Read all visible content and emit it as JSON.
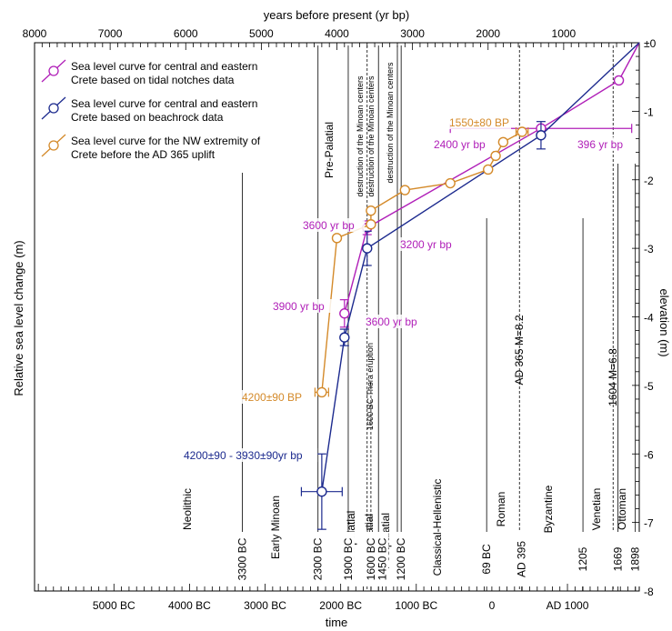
{
  "chart_data": {
    "type": "line",
    "top_axis": {
      "label": "years before present (yr bp)",
      "ticks": [
        "8000",
        "7000",
        "6000",
        "5000",
        "4000",
        "3000",
        "2000",
        "1000"
      ],
      "range": [
        8000,
        0
      ]
    },
    "bottom_axis": {
      "label": "time",
      "ticks": [
        "5000 BC",
        "4000 BC",
        "3000 BC",
        "2000 BC",
        "1000 BC",
        "0",
        "AD 1000"
      ]
    },
    "left_axis_label": "Relative sea level change (m)",
    "right_axis": {
      "label": "elevation (m)",
      "ticks": [
        "±0",
        "-1",
        "-2",
        "-3",
        "-4",
        "-5",
        "-6",
        "-7",
        "-8"
      ],
      "range": [
        0,
        -8
      ]
    },
    "legend": {
      "placement": "top-left",
      "entries": [
        {
          "line1": "Sea level curve for central and eastern",
          "line2": "Crete based on tidal notches data",
          "color": "#b01fb8"
        },
        {
          "line1": "Sea level curve for central and eastern",
          "line2": "Crete based on beachrock data",
          "color": "#1c2a8e"
        },
        {
          "line1": "Sea level curve for the NW extremity of",
          "line2": "Crete before the AD 365 uplift",
          "color": "#d48a2a"
        }
      ]
    },
    "series": [
      {
        "key": "notches",
        "color": "#b01fb8",
        "points": [
          {
            "t": 3900,
            "y": -3.95,
            "yerr": 0.2
          },
          {
            "t": 3600,
            "y": -2.7,
            "yerr": 0.1
          },
          {
            "t": 1300,
            "y": -1.25,
            "xerr": 1200
          },
          {
            "t": 270,
            "y": -0.55
          },
          {
            "t": 0,
            "y": 0
          }
        ]
      },
      {
        "key": "beachrock",
        "color": "#1c2a8e",
        "points": [
          {
            "t": 4200,
            "y": -6.55,
            "yerr": 0.55,
            "xerr": 270
          },
          {
            "t": 3900,
            "y": -4.3,
            "yerr": 0.12
          },
          {
            "t": 3600,
            "y": -3.0,
            "yerr": 0.25
          },
          {
            "t": 1300,
            "y": -1.35,
            "yerr": 0.2
          },
          {
            "t": 0,
            "y": 0
          }
        ]
      },
      {
        "key": "nw_crete",
        "color": "#d48a2a",
        "points": [
          {
            "t": 4200,
            "y": -5.1,
            "xerr": 90
          },
          {
            "t": 4000,
            "y": -2.85
          },
          {
            "t": 3550,
            "y": -2.65
          },
          {
            "t": 3550,
            "y": -2.45
          },
          {
            "t": 3100,
            "y": -2.15
          },
          {
            "t": 2500,
            "y": -2.05
          },
          {
            "t": 2000,
            "y": -1.85
          },
          {
            "t": 1900,
            "y": -1.65
          },
          {
            "t": 1800,
            "y": -1.45
          },
          {
            "t": 1550,
            "y": -1.3,
            "xerr": 80
          }
        ]
      }
    ],
    "annotations": [
      {
        "text": "1550±80 BP",
        "color": "#d48a2a"
      },
      {
        "text": "2400 yr bp",
        "color": "#b01fb8"
      },
      {
        "text": "396 yr bp",
        "color": "#b01fb8"
      },
      {
        "text": "3600 yr bp",
        "color": "#b01fb8"
      },
      {
        "text": "3200 yr bp",
        "color": "#b01fb8"
      },
      {
        "text": "3900 yr bp",
        "color": "#b01fb8"
      },
      {
        "text": "3600 yr bp",
        "color": "#b01fb8"
      },
      {
        "text": "4200±90 BP",
        "color": "#d48a2a"
      },
      {
        "text": "4200±90 - 3930±90yr bp",
        "color": "#1c2a8e"
      }
    ],
    "vertical_events": [
      {
        "t": 3600,
        "text": "destruction of the Minoan centers",
        "style": "dashed"
      },
      {
        "t": 3450,
        "text": "destruction of the Minoan centers",
        "style": "solid"
      },
      {
        "t": 3200,
        "text": "destruction of the Minoan centers",
        "style": "solid"
      },
      {
        "t": 3550,
        "text": "1600 BC Thera eruption",
        "style": "dashed"
      },
      {
        "t": 1585,
        "text": "AD 365 M=8.2",
        "style": "dashed"
      },
      {
        "t": 346,
        "text": "1604 M=6.8",
        "style": "dashed"
      }
    ],
    "periods": [
      {
        "name": "Neolithic",
        "boundary_label": "3300 BC"
      },
      {
        "name": "Early Minoan",
        "boundary_label": "2300 BC"
      },
      {
        "name": "Pre-Palatial",
        "boundary_label": ""
      },
      {
        "name": "Protopalatial",
        "boundary_label": "1900 BC"
      },
      {
        "name": "Neopalatial",
        "boundary_label": "1600 BC"
      },
      {
        "name": "Postpalatial",
        "boundary_label": "1450 BC"
      },
      {
        "name": "Classical-Hellenistic",
        "boundary_label": "1200 BC"
      },
      {
        "name": "Roman",
        "boundary_label": "69 BC"
      },
      {
        "name": "Byzantine",
        "boundary_label": "AD 395"
      },
      {
        "name": "Venetian",
        "boundary_label": "1205"
      },
      {
        "name": "Ottoman",
        "boundary_label": "1669"
      },
      {
        "name": "",
        "boundary_label": "1898"
      }
    ]
  }
}
